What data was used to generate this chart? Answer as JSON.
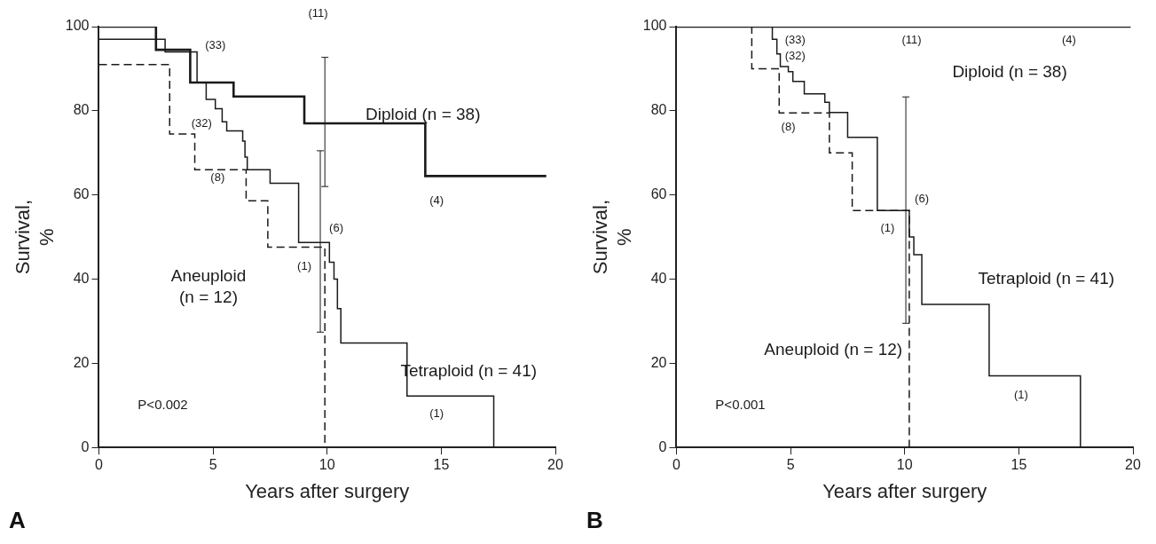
{
  "chart_data": [
    {
      "type": "step",
      "title": "A",
      "xlabel": "Years after surgery",
      "ylabel": "Survival, %",
      "xlim": [
        0,
        20
      ],
      "xticks": [
        0,
        5,
        10,
        15,
        20
      ],
      "ylim": [
        0,
        100
      ],
      "yticks": [
        0,
        20,
        40,
        60,
        80,
        100
      ],
      "grid": false,
      "legend": false,
      "marker": "none",
      "series": [
        {
          "name": "Diploid (n = 38)",
          "color": "#1a1a1a",
          "line_style": "solid",
          "x": [
            0,
            2.5,
            4.0,
            5.9,
            9.0,
            9.9,
            14.3,
            19.6
          ],
          "values": [
            100,
            94.5,
            86.7,
            83.4,
            77,
            77,
            64.5,
            64.5
          ],
          "errors": [
            null,
            null,
            null,
            null,
            null,
            [
              62,
              92.7
            ],
            null,
            null
          ]
        },
        {
          "name": "Aneuploid (n = 12)",
          "color": "#1a1a1a",
          "line_style": "dashed",
          "x": [
            0,
            3.1,
            4.2,
            6.45,
            7.4,
            9.9
          ],
          "values": [
            91,
            74.5,
            66,
            58.6,
            47.6,
            0
          ]
        },
        {
          "name": "Tetraploid (n = 41)",
          "color": "#1a1a1a",
          "line_style": "solid",
          "x": [
            0,
            2.9,
            4.3,
            4.7,
            5.1,
            5.4,
            5.6,
            6.3,
            6.4,
            6.5,
            7.5,
            8.75,
            9.7,
            10.1,
            10.3,
            10.45,
            10.6,
            13.5,
            17.3
          ],
          "values": [
            97,
            94,
            86.7,
            82.7,
            80.5,
            77.4,
            75.2,
            72.8,
            69,
            66,
            62.8,
            48.7,
            48.7,
            44,
            40,
            33,
            24.8,
            12.2,
            0
          ],
          "errors": [
            null,
            null,
            null,
            null,
            null,
            null,
            null,
            null,
            null,
            null,
            null,
            null,
            [
              27.4,
              70.5
            ],
            null,
            null,
            null,
            null,
            null,
            null
          ]
        }
      ],
      "annotations": [
        "(33)",
        "(32)",
        "(8)",
        "(1)",
        "(6)",
        "(11)",
        "(4)",
        "(1)",
        "P<0.002"
      ]
    },
    {
      "type": "step",
      "title": "B",
      "xlabel": "Years after surgery",
      "ylabel": "Survival, %",
      "xlim": [
        0,
        20
      ],
      "xticks": [
        0,
        5,
        10,
        15,
        20
      ],
      "ylim": [
        0,
        100
      ],
      "yticks": [
        0,
        20,
        40,
        60,
        80,
        100
      ],
      "grid": false,
      "legend": false,
      "marker": "none",
      "series": [
        {
          "name": "Diploid (n = 38)",
          "color": "#1a1a1a",
          "line_style": "solid",
          "x": [
            0,
            19.9
          ],
          "values": [
            100,
            100
          ]
        },
        {
          "name": "Aneuploid (n = 12)",
          "color": "#1a1a1a",
          "line_style": "dashed",
          "x": [
            0,
            3.3,
            4.5,
            6.7,
            7.7,
            10.2
          ],
          "values": [
            100,
            90,
            79.5,
            70,
            56.3,
            0
          ]
        },
        {
          "name": "Tetraploid (n = 41)",
          "color": "#1a1a1a",
          "line_style": "solid",
          "x": [
            0,
            4.2,
            4.4,
            4.55,
            4.9,
            5.1,
            5.6,
            6.5,
            6.7,
            7.5,
            8.8,
            10.05,
            10.2,
            10.4,
            10.75,
            13.7,
            17.7
          ],
          "values": [
            100,
            97,
            93.5,
            90.5,
            89.3,
            87,
            84,
            82,
            79.6,
            73.7,
            56.3,
            56.3,
            50,
            45.8,
            34,
            17,
            0
          ],
          "errors": [
            null,
            null,
            null,
            null,
            null,
            null,
            null,
            null,
            null,
            null,
            null,
            [
              29.5,
              83.3
            ],
            null,
            null,
            null,
            null,
            null
          ]
        }
      ],
      "annotations": [
        "(33)",
        "(32)",
        "(8)",
        "(1)",
        "(6)",
        "(11)",
        "(4)",
        "(1)",
        "P<0.001"
      ]
    }
  ]
}
